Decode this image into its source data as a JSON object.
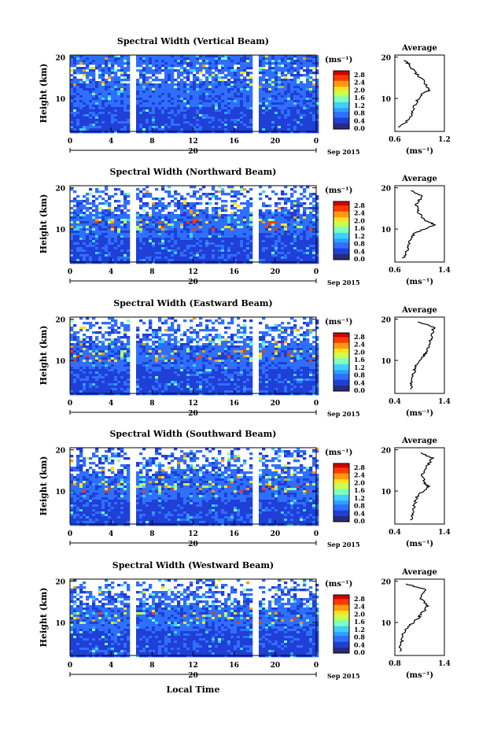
{
  "panels": [
    {
      "title": "Spectral Width (Vertical Beam)",
      "avg_xticks": [
        "0.6",
        "1.2"
      ],
      "avg_xlim": [
        0.6,
        1.2
      ]
    },
    {
      "title": "Spectral Width (Northward Beam)",
      "avg_xticks": [
        "0.6",
        "1.4"
      ],
      "avg_xlim": [
        0.6,
        1.4
      ]
    },
    {
      "title": "Spectral Width (Eastward Beam)",
      "avg_xticks": [
        "0.4",
        "1.4"
      ],
      "avg_xlim": [
        0.4,
        1.4
      ]
    },
    {
      "title": "Spectral Width (Southward Beam)",
      "avg_xticks": [
        "0.4",
        "1.4"
      ],
      "avg_xlim": [
        0.4,
        1.4
      ]
    },
    {
      "title": "Spectral Width (Westward Beam)",
      "avg_xticks": [
        "0.8",
        "1.4"
      ],
      "avg_xlim": [
        0.8,
        1.4
      ]
    }
  ],
  "common": {
    "ylabel": "Height (km)",
    "yticks": [
      "10",
      "20"
    ],
    "xticks": [
      "0",
      "4",
      "8",
      "12",
      "16",
      "20",
      "0"
    ],
    "date_day": "20",
    "date_month": "Sep 2015",
    "xlabel": "Local Time",
    "avg_title": "Average",
    "unit": "(ms⁻¹)",
    "colorbar_ticks": [
      "2.8",
      "2.4",
      "2.0",
      "1.6",
      "1.2",
      "0.8",
      "0.4",
      "0.0"
    ],
    "colors": [
      "#2a2a7a",
      "#1f3fd6",
      "#2f6fff",
      "#2f9fff",
      "#3fd0ff",
      "#7fffc0",
      "#c8ff50",
      "#ffe020",
      "#ff9a10",
      "#ff3a00",
      "#d00000"
    ]
  },
  "chart_data": [
    {
      "type": "heatmap",
      "title": "Spectral Width (Vertical Beam)",
      "xlabel": "Local Time",
      "ylabel": "Height (km)",
      "xlim": [
        0,
        24
      ],
      "ylim": [
        2,
        20.5
      ],
      "colorbar": {
        "label": "(ms⁻¹)",
        "range": [
          0.0,
          3.0
        ]
      },
      "gaps_hours": [
        [
          5.8,
          6.2
        ],
        [
          17.7,
          18.1
        ]
      ],
      "average_profile": {
        "xlim": [
          0.6,
          1.2
        ],
        "height_km": [
          3,
          5,
          7,
          9,
          11,
          12,
          14,
          16,
          18,
          19.5
        ],
        "width": [
          0.66,
          0.78,
          0.82,
          0.86,
          0.92,
          1.02,
          0.96,
          0.86,
          0.78,
          0.72
        ]
      }
    },
    {
      "type": "heatmap",
      "title": "Spectral Width (Northward Beam)",
      "xlabel": "Local Time",
      "ylabel": "Height (km)",
      "xlim": [
        0,
        24
      ],
      "ylim": [
        2,
        20.5
      ],
      "colorbar": {
        "label": "(ms⁻¹)",
        "range": [
          0.0,
          3.0
        ]
      },
      "gaps_hours": [
        [
          5.8,
          6.2
        ],
        [
          17.7,
          18.1
        ]
      ],
      "average_profile": {
        "xlim": [
          0.6,
          1.4
        ],
        "height_km": [
          3,
          5,
          7,
          9,
          11,
          12,
          14,
          16,
          18,
          19.5
        ],
        "width": [
          0.74,
          0.8,
          0.84,
          0.92,
          1.24,
          1.1,
          0.98,
          0.94,
          1.05,
          0.82
        ]
      }
    },
    {
      "type": "heatmap",
      "title": "Spectral Width (Eastward Beam)",
      "xlabel": "Local Time",
      "ylabel": "Height (km)",
      "xlim": [
        0,
        24
      ],
      "ylim": [
        2,
        20.5
      ],
      "colorbar": {
        "label": "(ms⁻¹)",
        "range": [
          0.0,
          3.0
        ]
      },
      "gaps_hours": [
        [
          5.8,
          6.2
        ],
        [
          17.7,
          18.1
        ]
      ],
      "average_profile": {
        "xlim": [
          0.4,
          1.4
        ],
        "height_km": [
          3,
          5,
          7,
          9,
          11,
          12,
          14,
          16,
          18,
          19.5
        ],
        "width": [
          0.72,
          0.74,
          0.78,
          0.84,
          0.98,
          1.05,
          1.1,
          1.15,
          1.18,
          0.85
        ]
      }
    },
    {
      "type": "heatmap",
      "title": "Spectral Width (Southward Beam)",
      "xlabel": "Local Time",
      "ylabel": "Height (km)",
      "xlim": [
        0,
        24
      ],
      "ylim": [
        2,
        20.5
      ],
      "colorbar": {
        "label": "(ms⁻¹)",
        "range": [
          0.0,
          3.0
        ]
      },
      "gaps_hours": [
        [
          5.8,
          6.2
        ],
        [
          17.7,
          18.1
        ]
      ],
      "average_profile": {
        "xlim": [
          0.4,
          1.4
        ],
        "height_km": [
          3,
          5,
          7,
          9,
          11,
          12,
          14,
          16,
          18,
          19.5
        ],
        "width": [
          0.74,
          0.76,
          0.8,
          0.86,
          1.08,
          1.0,
          0.95,
          1.05,
          1.15,
          0.88
        ]
      }
    },
    {
      "type": "heatmap",
      "title": "Spectral Width (Westward Beam)",
      "xlabel": "Local Time",
      "ylabel": "Height (km)",
      "xlim": [
        0,
        24
      ],
      "ylim": [
        2,
        20.5
      ],
      "colorbar": {
        "label": "(ms⁻¹)",
        "range": [
          0.0,
          3.0
        ]
      },
      "gaps_hours": [
        [
          5.8,
          6.2
        ],
        [
          17.7,
          18.1
        ]
      ],
      "average_profile": {
        "xlim": [
          0.8,
          1.4
        ],
        "height_km": [
          3,
          5,
          7,
          9,
          11,
          12,
          14,
          16,
          18,
          19.5
        ],
        "width": [
          0.86,
          0.88,
          0.9,
          0.96,
          1.08,
          1.12,
          1.2,
          1.1,
          1.18,
          0.9
        ]
      }
    }
  ]
}
